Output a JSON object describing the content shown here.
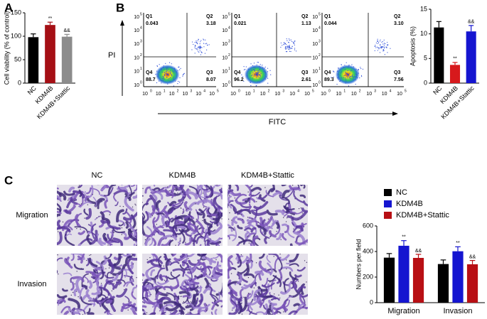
{
  "panels": {
    "letters": [
      "A",
      "B",
      "C"
    ]
  },
  "chart_data": [
    {
      "type": "bar",
      "ylabel": "Cell viability (% of control)",
      "categories": [
        "NC",
        "KDM4B",
        "KDM4B+Stattic"
      ],
      "values": [
        98,
        124,
        99
      ],
      "errors": [
        7,
        6,
        5
      ],
      "colors": [
        "#000000",
        "#a50f15",
        "#8c8c8c"
      ],
      "annotations": [
        null,
        "**",
        "&&"
      ],
      "ylim": [
        0,
        150
      ],
      "yticks": [
        0,
        50,
        100,
        150
      ]
    },
    {
      "type": "bar",
      "ylabel": "Apoptosis (%)",
      "categories": [
        "NC",
        "KDM4B",
        "KDM4B+Stattic"
      ],
      "values": [
        11.3,
        3.7,
        10.5
      ],
      "errors": [
        1.2,
        0.5,
        1.2
      ],
      "colors": [
        "#000000",
        "#d7191c",
        "#1515d0"
      ],
      "annotations": [
        null,
        "**",
        "&&"
      ],
      "ylim": [
        0,
        15
      ],
      "yticks": [
        0,
        5,
        10,
        15
      ]
    },
    {
      "type": "grouped_bar",
      "ylabel": "Numbers per field",
      "categories": [
        "Migration",
        "Invasion"
      ],
      "series": [
        {
          "name": "NC",
          "color": "#000000",
          "values": [
            352,
            302
          ],
          "errors": [
            32,
            32
          ],
          "annotations": [
            null,
            null
          ]
        },
        {
          "name": "KDM4B",
          "color": "#1515d0",
          "values": [
            445,
            402
          ],
          "errors": [
            40,
            35
          ],
          "annotations": [
            "**",
            "**"
          ]
        },
        {
          "name": "KDM4B+Stattic",
          "color": "#b80f14",
          "values": [
            350,
            300
          ],
          "errors": [
            28,
            30
          ],
          "annotations": [
            "&&",
            "&&"
          ]
        }
      ],
      "ylim": [
        0,
        600
      ],
      "yticks": [
        0,
        200,
        400,
        600
      ],
      "legend": "top"
    }
  ],
  "flow": {
    "xlabel": "FITC",
    "ylabel": "PI",
    "tick_base": "10",
    "tick_exponents": [
      "0",
      "1",
      "2",
      "3",
      "4",
      "5"
    ],
    "plots": [
      {
        "quadrants": [
          {
            "name": "Q1",
            "value": "0.043"
          },
          {
            "name": "Q2",
            "value": "3.18"
          },
          {
            "name": "Q4",
            "value": "88.7"
          },
          {
            "name": "Q3",
            "value": "8.07"
          }
        ]
      },
      {
        "quadrants": [
          {
            "name": "Q1",
            "value": "0.021"
          },
          {
            "name": "Q2",
            "value": "1.13"
          },
          {
            "name": "Q4",
            "value": "96.2"
          },
          {
            "name": "Q3",
            "value": "2.61"
          }
        ]
      },
      {
        "quadrants": [
          {
            "name": "Q1",
            "value": "0.044"
          },
          {
            "name": "Q2",
            "value": "3.10"
          },
          {
            "name": "Q4",
            "value": "89.3"
          },
          {
            "name": "Q3",
            "value": "7.56"
          }
        ]
      }
    ]
  },
  "images": {
    "columns": [
      "NC",
      "KDM4B",
      "KDM4B+Stattic"
    ],
    "rows": [
      "Migration",
      "Invasion"
    ]
  }
}
